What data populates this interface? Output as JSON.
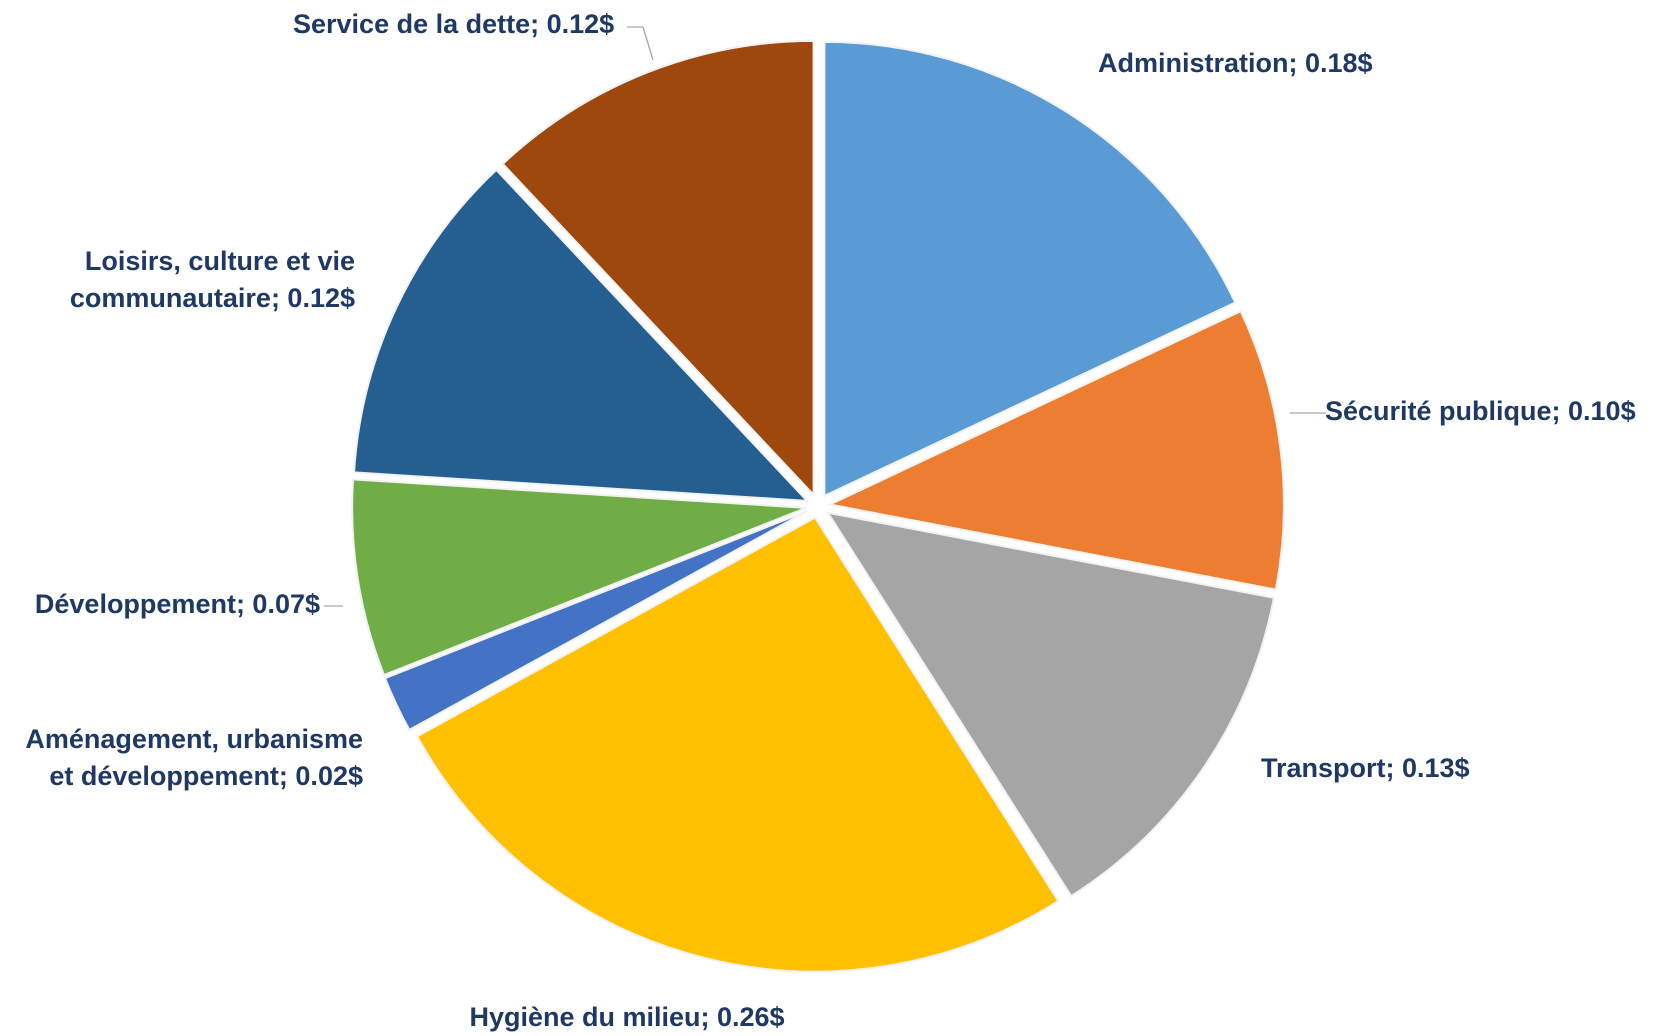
{
  "chart_data": {
    "type": "pie",
    "title": "",
    "categories": [
      "Administration",
      "Sécurité publique",
      "Transport",
      "Hygiène du milieu",
      "Aménagement, urbanisme et développement",
      "Développement",
      "Loisirs, culture et vie communautaire",
      "Service de la dette"
    ],
    "values": [
      0.18,
      0.1,
      0.13,
      0.26,
      0.02,
      0.07,
      0.12,
      0.12
    ],
    "colors": [
      "#5b9bd5",
      "#ed7d31",
      "#a5a5a5",
      "#ffc000",
      "#4472c4",
      "#70ad47",
      "#255e91",
      "#9e480e"
    ],
    "labels": [
      [
        "Administration; 0.18$"
      ],
      [
        "Sécurité publique; 0.10$"
      ],
      [
        "Transport; 0.13$"
      ],
      [
        "Hygiène du milieu; 0.26$"
      ],
      [
        "Aménagement, urbanisme",
        "et développement; 0.02$"
      ],
      [
        "Développement; 0.07$"
      ],
      [
        "Loisirs, culture et vie",
        "communautaire; 0.12$"
      ],
      [
        "Service de la dette; 0.12$"
      ]
    ],
    "start_angle": "12 o'clock",
    "direction": "clockwise",
    "exploded": true,
    "legend": "none"
  }
}
